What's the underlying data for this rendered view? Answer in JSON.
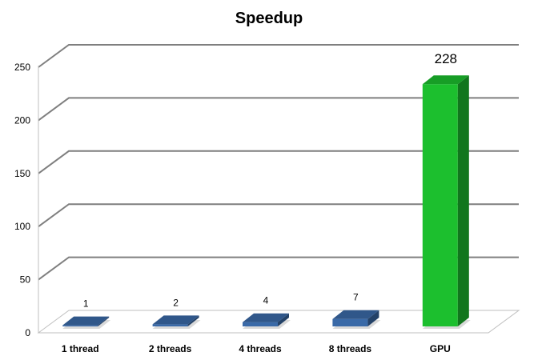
{
  "chart_data": {
    "type": "bar",
    "title": "Speedup",
    "categories": [
      "1 thread",
      "2 threads",
      "4 threads",
      "8 threads",
      "GPU"
    ],
    "values": [
      1,
      2,
      4,
      7,
      228
    ],
    "ylim": [
      0,
      250
    ],
    "yticks": [
      0,
      50,
      100,
      150,
      200,
      250
    ],
    "grid": true,
    "legend": "none",
    "colors": {
      "default_bar": "#3a6aa8",
      "highlight_bar": "#1cbf2e",
      "gridline": "#7f7f7f"
    },
    "highlight_index": 4
  }
}
